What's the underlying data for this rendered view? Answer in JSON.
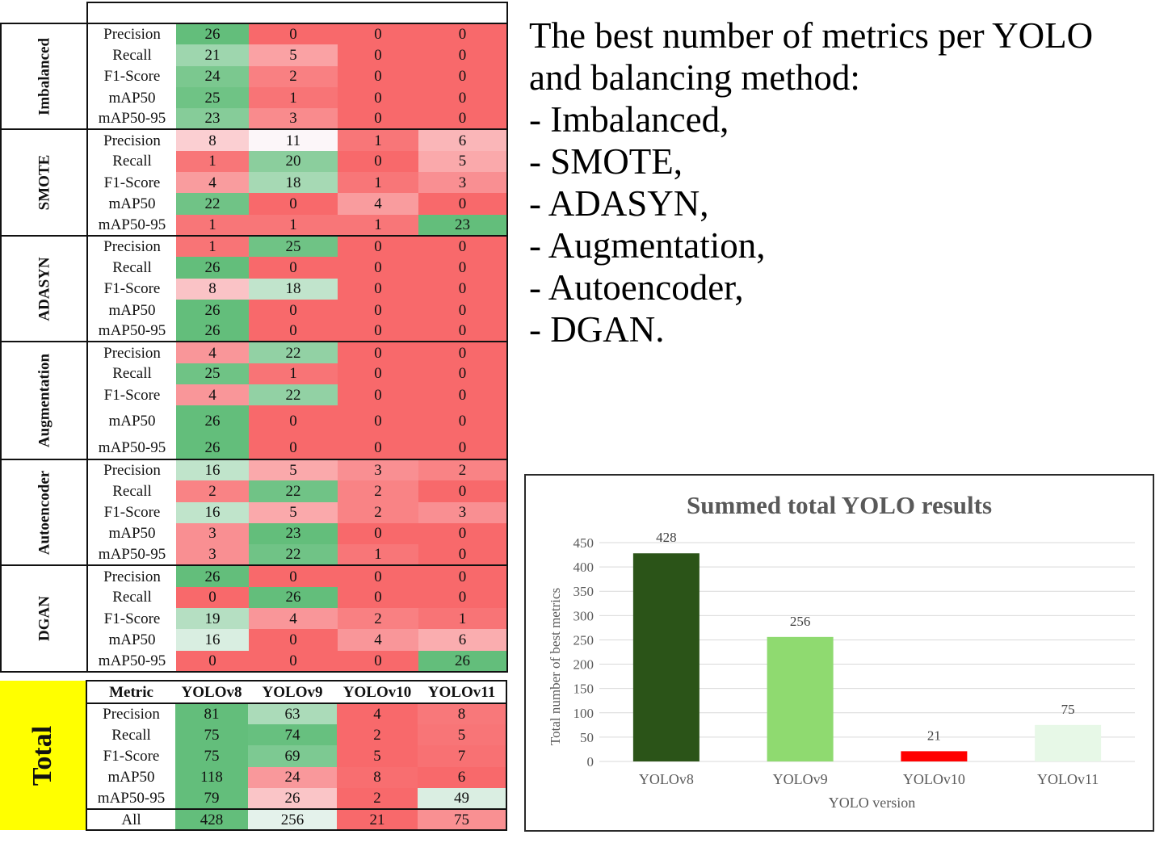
{
  "table": {
    "header": [
      "Metric",
      "YOLOv8",
      "YOLOv9",
      "YOLOv10",
      "YOLOv11"
    ],
    "groups": [
      {
        "name": "Imbalanced",
        "rows": [
          {
            "metric": "Precision",
            "values": [
              26,
              0,
              0,
              0
            ]
          },
          {
            "metric": "Recall",
            "values": [
              21,
              5,
              0,
              0
            ]
          },
          {
            "metric": "F1-Score",
            "values": [
              24,
              2,
              0,
              0
            ]
          },
          {
            "metric": "mAP50",
            "values": [
              25,
              1,
              0,
              0
            ]
          },
          {
            "metric": "mAP50-95",
            "values": [
              23,
              3,
              0,
              0
            ]
          }
        ]
      },
      {
        "name": "SMOTE",
        "rows": [
          {
            "metric": "Precision",
            "values": [
              8,
              11,
              1,
              6
            ]
          },
          {
            "metric": "Recall",
            "values": [
              1,
              20,
              0,
              5
            ]
          },
          {
            "metric": "F1-Score",
            "values": [
              4,
              18,
              1,
              3
            ]
          },
          {
            "metric": "mAP50",
            "values": [
              22,
              0,
              4,
              0
            ]
          },
          {
            "metric": "mAP50-95",
            "values": [
              1,
              1,
              1,
              23
            ]
          }
        ]
      },
      {
        "name": "ADASYN",
        "rows": [
          {
            "metric": "Precision",
            "values": [
              1,
              25,
              0,
              0
            ]
          },
          {
            "metric": "Recall",
            "values": [
              26,
              0,
              0,
              0
            ]
          },
          {
            "metric": "F1-Score",
            "values": [
              8,
              18,
              0,
              0
            ]
          },
          {
            "metric": "mAP50",
            "values": [
              26,
              0,
              0,
              0
            ]
          },
          {
            "metric": "mAP50-95",
            "values": [
              26,
              0,
              0,
              0
            ]
          }
        ]
      },
      {
        "name": "Augmentation",
        "rows": [
          {
            "metric": "Precision",
            "values": [
              4,
              22,
              0,
              0
            ]
          },
          {
            "metric": "Recall",
            "values": [
              25,
              1,
              0,
              0
            ]
          },
          {
            "metric": "F1-Score",
            "values": [
              4,
              22,
              0,
              0
            ]
          },
          {
            "metric": "mAP50",
            "values": [
              26,
              0,
              0,
              0
            ]
          },
          {
            "metric": "mAP50-95",
            "values": [
              26,
              0,
              0,
              0
            ]
          }
        ]
      },
      {
        "name": "Autoencoder",
        "rows": [
          {
            "metric": "Precision",
            "values": [
              16,
              5,
              3,
              2
            ]
          },
          {
            "metric": "Recall",
            "values": [
              2,
              22,
              2,
              0
            ]
          },
          {
            "metric": "F1-Score",
            "values": [
              16,
              5,
              2,
              3
            ]
          },
          {
            "metric": "mAP50",
            "values": [
              3,
              23,
              0,
              0
            ]
          },
          {
            "metric": "mAP50-95",
            "values": [
              3,
              22,
              1,
              0
            ]
          }
        ]
      },
      {
        "name": "DGAN",
        "rows": [
          {
            "metric": "Precision",
            "values": [
              26,
              0,
              0,
              0
            ]
          },
          {
            "metric": "Recall",
            "values": [
              0,
              26,
              0,
              0
            ]
          },
          {
            "metric": "F1-Score",
            "values": [
              19,
              4,
              2,
              1
            ]
          },
          {
            "metric": "mAP50",
            "values": [
              16,
              0,
              4,
              6
            ]
          },
          {
            "metric": "mAP50-95",
            "values": [
              0,
              0,
              0,
              26
            ]
          }
        ]
      }
    ]
  },
  "totals": {
    "label": "Total",
    "header": [
      "Metric",
      "YOLOv8",
      "YOLOv9",
      "YOLOv10",
      "YOLOv11"
    ],
    "rows": [
      {
        "metric": "Precision",
        "values": [
          81,
          63,
          4,
          8
        ]
      },
      {
        "metric": "Recall",
        "values": [
          75,
          74,
          2,
          5
        ]
      },
      {
        "metric": "F1-Score",
        "values": [
          75,
          69,
          5,
          7
        ]
      },
      {
        "metric": "mAP50",
        "values": [
          118,
          24,
          8,
          6
        ]
      },
      {
        "metric": "mAP50-95",
        "values": [
          79,
          26,
          2,
          49
        ]
      },
      {
        "metric": "All",
        "values": [
          428,
          256,
          21,
          75
        ]
      }
    ]
  },
  "colors": {
    "good": "#63be7b",
    "mid": "#fcfcff",
    "bad": "#f8696b"
  },
  "notes": [
    "The best number of metrics per YOLO",
    "and balancing method:",
    "- Imbalanced,",
    "- SMOTE,",
    "- ADASYN,",
    "- Augmentation,",
    "- Autoencoder,",
    "- DGAN."
  ],
  "chart_data": {
    "type": "bar",
    "title": "Summed total YOLO results",
    "xlabel": "YOLO version",
    "ylabel": "Total number of best metrics",
    "categories": [
      "YOLOv8",
      "YOLOv9",
      "YOLOv10",
      "YOLOv11"
    ],
    "values": [
      428,
      256,
      21,
      75
    ],
    "bar_colors": [
      "#2b5418",
      "#8fda70",
      "#ff0000",
      "#e7f8e7"
    ],
    "ylim": [
      0,
      450
    ],
    "yticks": [
      0,
      50,
      100,
      150,
      200,
      250,
      300,
      350,
      400,
      450
    ],
    "grid": true,
    "legend": "none"
  }
}
